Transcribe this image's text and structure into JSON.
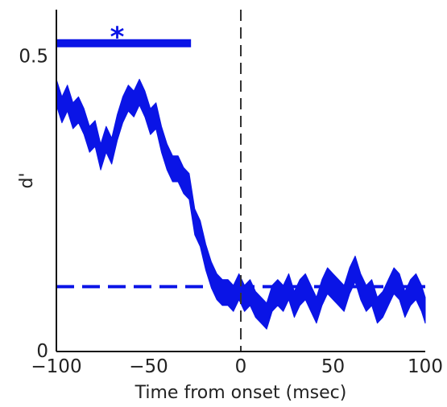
{
  "chart_data": {
    "type": "area",
    "title": "",
    "xlabel": "Time from onset (msec)",
    "ylabel": "d'",
    "xlim": [
      -100,
      100
    ],
    "ylim": [
      0,
      0.58
    ],
    "grid": false,
    "x_ticks": [
      -100,
      -50,
      0,
      50,
      100
    ],
    "x_tick_labels": [
      "−100",
      "−50",
      "0",
      "50",
      "100"
    ],
    "y_ticks": [
      0,
      0.5
    ],
    "y_tick_labels": [
      "0",
      "0.5"
    ],
    "color": "#0a14e6",
    "series": [
      {
        "x": [
          -100,
          -97,
          -94,
          -91,
          -88,
          -85,
          -82,
          -79,
          -76,
          -73,
          -70,
          -67,
          -64,
          -61,
          -58,
          -55,
          -52,
          -49,
          -46,
          -43,
          -40,
          -37,
          -34,
          -31,
          -28,
          -25,
          -22,
          -19,
          -16,
          -13,
          -10,
          -7,
          -4,
          -1,
          2,
          5,
          8,
          11,
          14,
          17,
          20,
          23,
          26,
          29,
          32,
          35,
          38,
          41,
          44,
          47,
          50,
          53,
          56,
          59,
          62,
          65,
          68,
          71,
          74,
          77,
          80,
          83,
          86,
          89,
          92,
          95,
          98,
          100
        ],
        "y": [
          0.44,
          0.41,
          0.43,
          0.4,
          0.41,
          0.39,
          0.36,
          0.37,
          0.33,
          0.36,
          0.34,
          0.38,
          0.41,
          0.43,
          0.42,
          0.44,
          0.42,
          0.39,
          0.4,
          0.36,
          0.33,
          0.31,
          0.31,
          0.29,
          0.28,
          0.22,
          0.2,
          0.16,
          0.13,
          0.11,
          0.1,
          0.1,
          0.09,
          0.11,
          0.09,
          0.1,
          0.08,
          0.07,
          0.06,
          0.09,
          0.1,
          0.09,
          0.11,
          0.08,
          0.1,
          0.11,
          0.09,
          0.07,
          0.1,
          0.12,
          0.11,
          0.1,
          0.09,
          0.12,
          0.14,
          0.11,
          0.09,
          0.1,
          0.07,
          0.08,
          0.1,
          0.12,
          0.11,
          0.08,
          0.1,
          0.11,
          0.09,
          0.07
        ],
        "half_width": 0.022
      }
    ],
    "baseline": 0.11,
    "significance_bar": {
      "x_start": -100,
      "x_end": -27,
      "y": 0.523
    },
    "significance_marker": {
      "text": "*",
      "x": -67,
      "y": 0.545
    },
    "event_line_x": 0
  }
}
